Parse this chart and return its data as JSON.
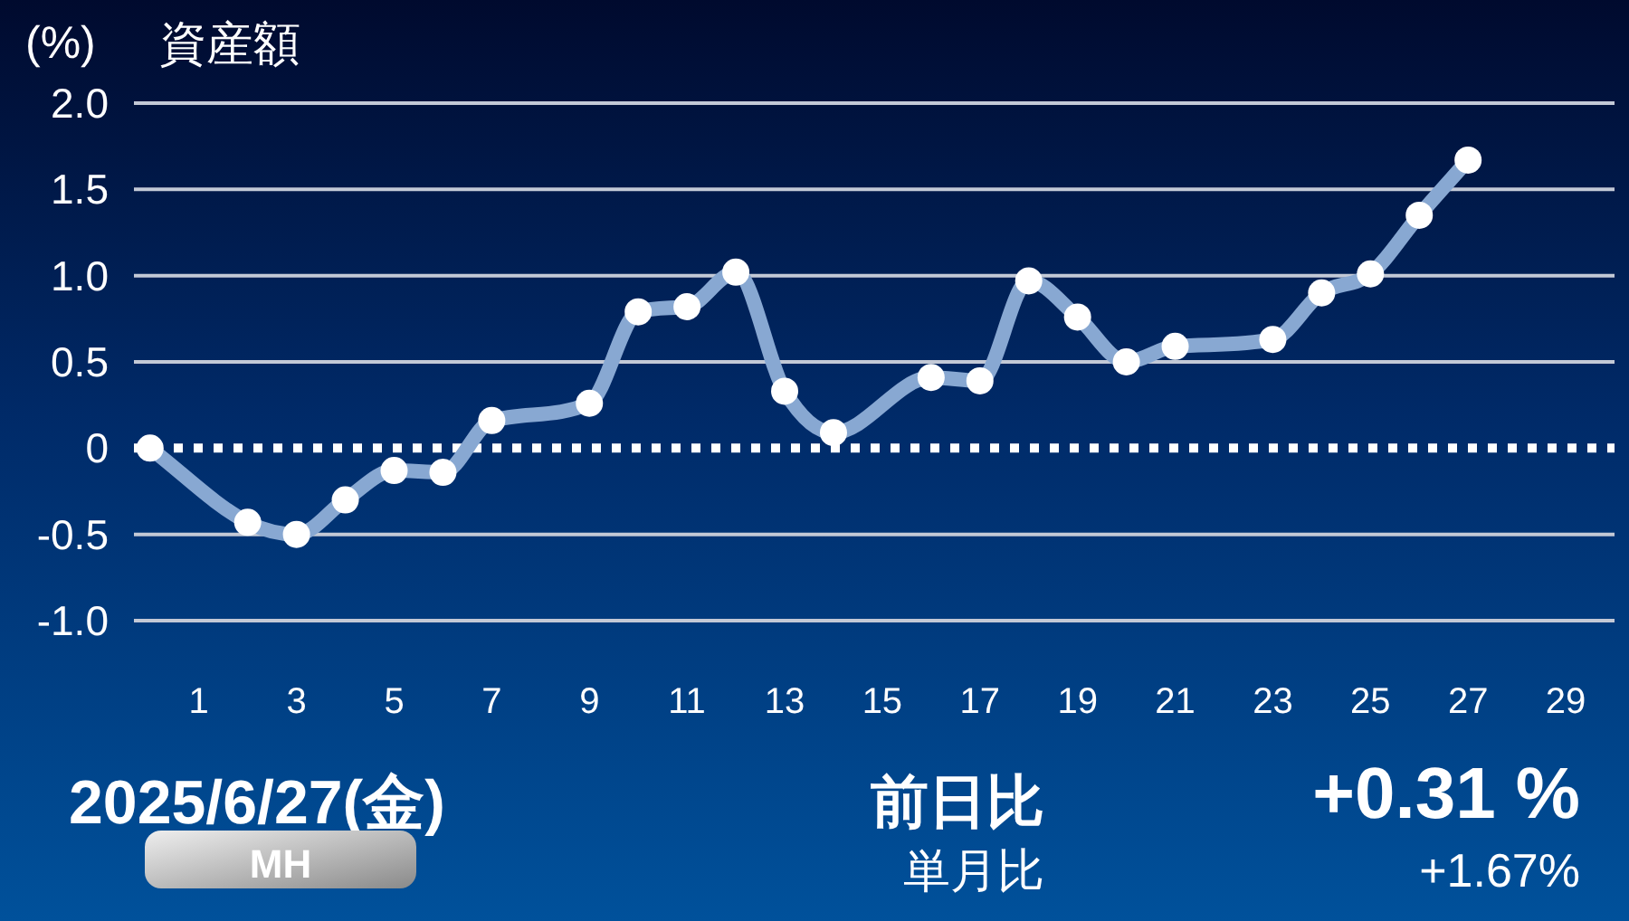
{
  "chart_data": {
    "type": "line",
    "title": "資産額",
    "ylabel": "(%)",
    "x": [
      0,
      2,
      3,
      4,
      5,
      6,
      7,
      9,
      10,
      11,
      12,
      13,
      14,
      16,
      17,
      18,
      19,
      20,
      21,
      23,
      24,
      25,
      26,
      27
    ],
    "series": [
      {
        "color": "#88a8d2",
        "values": [
          0,
          -0.43,
          -0.5,
          -0.3,
          -0.13,
          -0.14,
          0.16,
          0.26,
          0.79,
          0.82,
          1.02,
          0.33,
          0.09,
          0.41,
          0.39,
          0.97,
          0.76,
          0.5,
          0.59,
          0.63,
          0.9,
          1.01,
          1.35,
          1.67
        ]
      }
    ],
    "xlim": [
      -0.33,
      30
    ],
    "xticks": [
      1,
      3,
      5,
      7,
      9,
      11,
      13,
      15,
      17,
      19,
      21,
      23,
      25,
      27,
      29
    ],
    "ylim": [
      -1,
      2
    ],
    "yticks": [
      {
        "value": 2,
        "label": "2.0"
      },
      1.5,
      {
        "value": 1,
        "label": "1.0"
      },
      0.5,
      0,
      -0.5,
      {
        "value": -1,
        "label": "-1.0"
      }
    ],
    "grid": "y",
    "marker": "circle",
    "ref_lines": [
      {
        "axis": "y",
        "value": 0,
        "color": "#ffffff",
        "line_style": "dotted"
      }
    ],
    "annotations": [
      "2025/6/27(金)",
      "前日比",
      "+0.31 %",
      "MH",
      "単月比",
      "+1.67%"
    ]
  }
}
